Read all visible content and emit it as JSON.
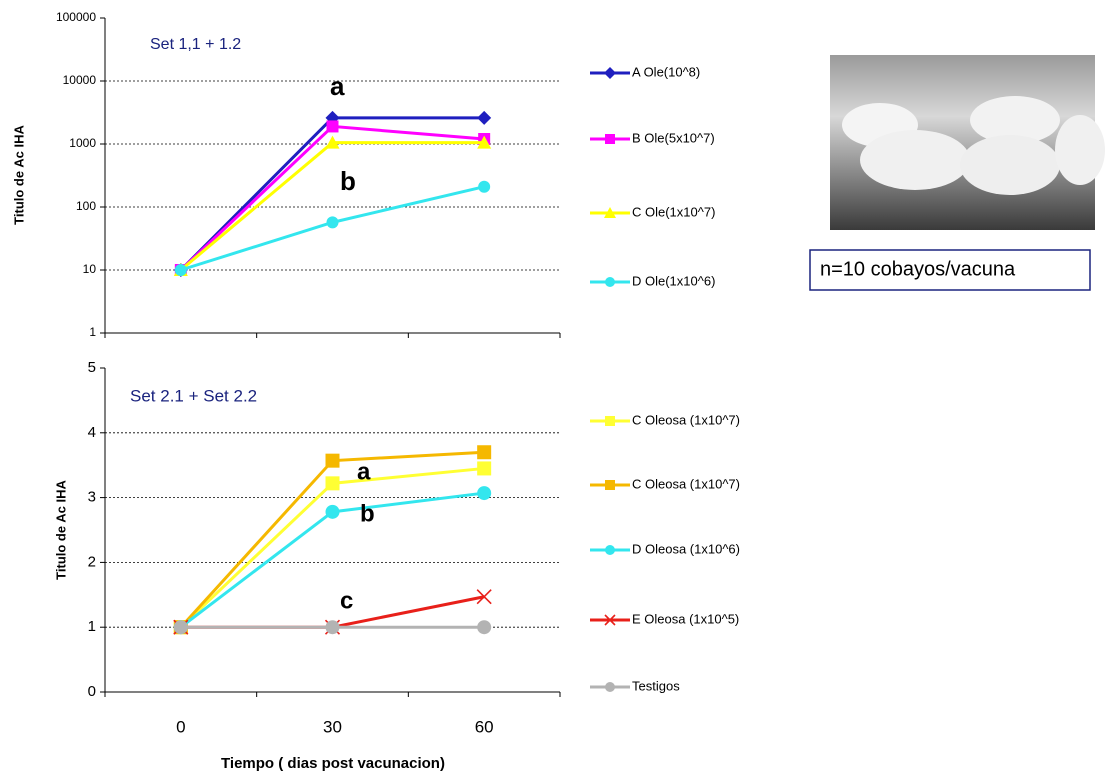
{
  "chart_data": [
    {
      "type": "line",
      "y_label": "Titulo de Ac IHA",
      "y_scale": "log",
      "categories": [
        null,
        null,
        null
      ],
      "ylim": [
        1,
        100000
      ],
      "yticks": [
        1,
        10,
        100,
        1000,
        10000,
        100000
      ],
      "grid": true,
      "annotations": [
        "Set 1,1 + 1.2",
        "a",
        "b"
      ],
      "series": [
        {
          "name": "A Ole(10^8)",
          "color": "#1f1fbf",
          "marker": "diamond",
          "values": [
            10,
            2600,
            2600
          ]
        },
        {
          "name": "B Ole(5x10^7)",
          "color": "#ff00ff",
          "marker": "square",
          "values": [
            10,
            1900,
            1200
          ]
        },
        {
          "name": "C Ole(1x10^7)",
          "color": "#ffff00",
          "marker": "triangle",
          "values": [
            10,
            1050,
            1050
          ]
        },
        {
          "name": "D Ole(1x10^6)",
          "color": "#33e6ee",
          "marker": "circle",
          "values": [
            10,
            57,
            210
          ]
        }
      ]
    },
    {
      "type": "line",
      "y_label": "Titulo de Ac IHA",
      "x_label": "Tiempo ( dias post vacunacion)",
      "y_scale": "linear",
      "categories": [
        "0",
        "30",
        "60"
      ],
      "ylim": [
        0,
        5
      ],
      "yticks": [
        0,
        1,
        2,
        3,
        4,
        5
      ],
      "grid": true,
      "annotations": [
        "Set 2.1 + Set 2.2",
        "a",
        "b",
        "c"
      ],
      "series": [
        {
          "name": "C Oleosa (1x10^7)",
          "color": "#ffff33",
          "marker": "square",
          "values": [
            1,
            3.22,
            3.45
          ]
        },
        {
          "name": "C Oleosa (1x10^7)",
          "color": "#f5b800",
          "marker": "square",
          "values": [
            1,
            3.57,
            3.7
          ]
        },
        {
          "name": "D Oleosa (1x10^6)",
          "color": "#33e6ee",
          "marker": "circle",
          "values": [
            1,
            2.78,
            3.07
          ]
        },
        {
          "name": "E Oleosa (1x10^5)",
          "color": "#e8201a",
          "marker": "x",
          "values": [
            1,
            1,
            1.47
          ]
        },
        {
          "name": "Testigos",
          "color": "#b3b3b3",
          "marker": "circle",
          "values": [
            1,
            1,
            1
          ]
        }
      ]
    }
  ],
  "note": "n=10 cobayos/vacuna"
}
